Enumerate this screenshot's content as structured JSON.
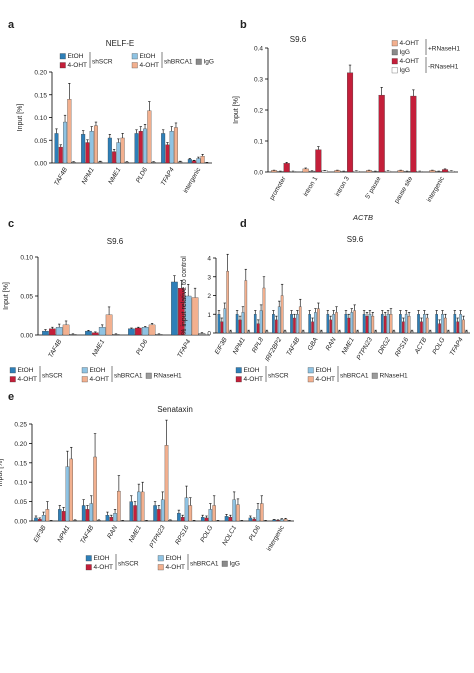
{
  "colors": {
    "etoh_scr": "#2e7fb8",
    "oht_scr": "#c41f3a",
    "etoh_brca": "#8fc3e3",
    "oht_brca": "#f2b08f",
    "igg": "#8a8a8a",
    "rnaseh1": "#9b9b9b",
    "white": "#ffffff"
  },
  "chart_data": [
    {
      "panel": "a",
      "type": "bar",
      "title": "NELF-E",
      "ylabel": "Input [%]",
      "ylim": [
        0,
        0.2
      ],
      "yticks": [
        "0.00",
        "0.05",
        "0.10",
        "0.15",
        "0.20"
      ],
      "categories": [
        "TAF4B",
        "NPM1",
        "NME1",
        "PLD6",
        "TFAP4",
        "intergenic"
      ],
      "legend": {
        "items": [
          "EtOH",
          "4-OHT",
          "EtOH",
          "4-OHT",
          "IgG"
        ],
        "group_labels": [
          "shSCR",
          "shBRCA1"
        ]
      },
      "series": [
        {
          "name": "EtOH shSCR",
          "values": [
            0.065,
            0.063,
            0.055,
            0.065,
            0.065,
            0.008
          ]
        },
        {
          "name": "4-OHT shSCR",
          "values": [
            0.035,
            0.045,
            0.025,
            0.07,
            0.04,
            0.005
          ]
        },
        {
          "name": "EtOH shBRCA1",
          "values": [
            0.09,
            0.07,
            0.045,
            0.075,
            0.07,
            0.01
          ]
        },
        {
          "name": "4-OHT shBRCA1",
          "values": [
            0.14,
            0.082,
            0.055,
            0.115,
            0.078,
            0.015
          ]
        },
        {
          "name": "IgG",
          "values": [
            0.002,
            0.003,
            0.002,
            0.002,
            0.003,
            0.001
          ]
        }
      ],
      "errors": [
        [
          0.01,
          0.008,
          0.008,
          0.008,
          0.008,
          0.002
        ],
        [
          0.005,
          0.006,
          0.005,
          0.01,
          0.005,
          0.001
        ],
        [
          0.015,
          0.01,
          0.008,
          0.01,
          0.01,
          0.003
        ],
        [
          0.035,
          0.008,
          0.01,
          0.02,
          0.01,
          0.004
        ],
        [
          0.001,
          0.001,
          0.001,
          0.001,
          0.001,
          0.0005
        ]
      ]
    },
    {
      "panel": "b",
      "type": "bar",
      "title": "S9.6",
      "ylabel": "Input [%]",
      "xlabel": "ACTB",
      "ylim": [
        0,
        0.4
      ],
      "yticks": [
        "0.0",
        "0.1",
        "0.2",
        "0.3",
        "0.4"
      ],
      "categories": [
        "promoter",
        "intron 1",
        "intron 3",
        "5' pause",
        "pause site",
        "intergenic"
      ],
      "legend": {
        "items": [
          "4-OHT",
          "IgG",
          "4-OHT",
          "IgG"
        ],
        "group_labels": [
          "+RNaseH1",
          "-RNaseH1"
        ]
      },
      "series": [
        {
          "name": "4-OHT +RNaseH1",
          "values": [
            0.005,
            0.01,
            0.005,
            0.005,
            0.005,
            0.005
          ]
        },
        {
          "name": "IgG +RNaseH1",
          "values": [
            0.002,
            0.003,
            0.002,
            0.002,
            0.002,
            0.002
          ]
        },
        {
          "name": "4-OHT -RNaseH1",
          "values": [
            0.028,
            0.072,
            0.32,
            0.248,
            0.245,
            0.008
          ]
        },
        {
          "name": "IgG -RNaseH1",
          "values": [
            0.002,
            0.004,
            0.003,
            0.003,
            0.002,
            0.003
          ]
        }
      ],
      "errors": [
        [
          0.001,
          0.003,
          0.001,
          0.001,
          0.001,
          0.001
        ],
        [
          0.001,
          0.001,
          0.001,
          0.001,
          0.001,
          0.001
        ],
        [
          0.003,
          0.01,
          0.025,
          0.025,
          0.02,
          0.002
        ],
        [
          0.001,
          0.001,
          0.001,
          0.001,
          0.001,
          0.001
        ]
      ]
    },
    {
      "panel": "c",
      "type": "bar",
      "title": "S9.6",
      "ylabel": "Input [%]",
      "ylim": [
        0,
        0.1
      ],
      "yticks": [
        "0.00",
        "0.05",
        "0.10"
      ],
      "categories": [
        "TAF4B",
        "NME1",
        "PLD6",
        "TFAP4"
      ],
      "legend": {
        "items": [
          "EtOH",
          "4-OHT",
          "EtOH",
          "4-OHT",
          "RNaseH1"
        ],
        "group_labels": [
          "shSCR",
          "shBRCA1"
        ]
      },
      "series": [
        {
          "name": "EtOH shSCR",
          "values": [
            0.005,
            0.005,
            0.008,
            0.068
          ]
        },
        {
          "name": "4-OHT shSCR",
          "values": [
            0.008,
            0.003,
            0.009,
            0.06
          ]
        },
        {
          "name": "EtOH shBRCA1",
          "values": [
            0.01,
            0.01,
            0.01,
            0.05
          ]
        },
        {
          "name": "4-OHT shBRCA1",
          "values": [
            0.013,
            0.026,
            0.013,
            0.048
          ]
        },
        {
          "name": "RNaseH1",
          "values": [
            0.001,
            0.001,
            0.001,
            0.002
          ]
        }
      ],
      "errors": [
        [
          0.002,
          0.001,
          0.001,
          0.008
        ],
        [
          0.002,
          0.001,
          0.001,
          0.01
        ],
        [
          0.004,
          0.003,
          0.001,
          0.015
        ],
        [
          0.005,
          0.01,
          0.002,
          0.012
        ],
        [
          0.0005,
          0.0005,
          0.0005,
          0.001
        ]
      ]
    },
    {
      "panel": "d",
      "type": "bar",
      "title": "S9.6",
      "ylabel": "% input relative to control",
      "ylim": [
        0,
        4
      ],
      "yticks": [
        "0",
        "1",
        "2",
        "3",
        "4"
      ],
      "categories": [
        "EIF3B",
        "NPM1",
        "RPL8",
        "IRF2BP2",
        "TAF4B",
        "GBA",
        "RAN",
        "NME1",
        "PTPN23",
        "DRG2",
        "RPS16",
        "ACTB",
        "POLG",
        "TFAP4"
      ],
      "legend": {
        "items": [
          "EtOH",
          "4-OHT",
          "EtOH",
          "4-OHT",
          "RNaseH1"
        ],
        "group_labels": [
          "shSCR",
          "shBRCA1"
        ]
      },
      "series": [
        {
          "name": "EtOH shSCR",
          "values": [
            1.0,
            1.0,
            1.0,
            1.0,
            1.0,
            1.0,
            1.0,
            1.0,
            1.0,
            1.0,
            1.0,
            1.0,
            1.0,
            1.0
          ]
        },
        {
          "name": "4-OHT shSCR",
          "values": [
            0.6,
            0.7,
            0.5,
            0.7,
            0.8,
            0.6,
            0.7,
            0.8,
            0.9,
            0.9,
            0.6,
            0.6,
            0.5,
            0.6
          ]
        },
        {
          "name": "EtOH shBRCA1",
          "values": [
            1.3,
            1.1,
            1.2,
            1.4,
            1.0,
            1.1,
            1.0,
            1.1,
            1.0,
            1.0,
            1.0,
            1.0,
            1.0,
            1.0
          ]
        },
        {
          "name": "4-OHT shBRCA1",
          "values": [
            3.3,
            2.8,
            2.4,
            2.0,
            1.4,
            1.3,
            1.1,
            1.2,
            0.9,
            1.0,
            0.9,
            0.8,
            0.8,
            0.7
          ]
        },
        {
          "name": "RNaseH1",
          "values": [
            0.1,
            0.1,
            0.1,
            0.1,
            0.1,
            0.1,
            0.1,
            0.1,
            0.1,
            0.1,
            0.1,
            0.1,
            0.1,
            0.1
          ]
        }
      ],
      "errors": [
        [
          0.2,
          0.2,
          0.2,
          0.2,
          0.2,
          0.2,
          0.2,
          0.2,
          0.2,
          0.2,
          0.2,
          0.2,
          0.2,
          0.2
        ],
        [
          0.2,
          0.2,
          0.2,
          0.2,
          0.2,
          0.2,
          0.2,
          0.2,
          0.2,
          0.2,
          0.2,
          0.2,
          0.2,
          0.2
        ],
        [
          0.3,
          0.3,
          0.3,
          0.3,
          0.2,
          0.2,
          0.2,
          0.2,
          0.2,
          0.2,
          0.2,
          0.2,
          0.2,
          0.2
        ],
        [
          0.9,
          0.6,
          0.6,
          0.6,
          0.4,
          0.3,
          0.3,
          0.3,
          0.2,
          0.3,
          0.2,
          0.2,
          0.2,
          0.2
        ],
        [
          0.05,
          0.05,
          0.05,
          0.05,
          0.05,
          0.05,
          0.05,
          0.05,
          0.05,
          0.05,
          0.05,
          0.05,
          0.05,
          0.05
        ]
      ]
    },
    {
      "panel": "e",
      "type": "bar",
      "title": "Senataxin",
      "ylabel": "Input [%]",
      "ylim": [
        0,
        0.25
      ],
      "yticks": [
        "0.00",
        "0.05",
        "0.10",
        "0.15",
        "0.20",
        "0.25"
      ],
      "categories": [
        "EIF3B",
        "NPM1",
        "TAF4B",
        "RAN",
        "NME1",
        "PTPN23",
        "RPS16",
        "POLG",
        "NOLC1",
        "PLD6",
        "intergenic"
      ],
      "legend": {
        "items": [
          "EtOH",
          "4-OHT",
          "EtOH",
          "4-OHT",
          "IgG"
        ],
        "group_labels": [
          "shSCR",
          "shBRCA1"
        ]
      },
      "series": [
        {
          "name": "EtOH shSCR",
          "values": [
            0.008,
            0.03,
            0.04,
            0.015,
            0.05,
            0.04,
            0.02,
            0.01,
            0.012,
            0.008,
            0.003
          ]
        },
        {
          "name": "4-OHT shSCR",
          "values": [
            0.005,
            0.025,
            0.03,
            0.01,
            0.04,
            0.03,
            0.01,
            0.008,
            0.01,
            0.005,
            0.002
          ]
        },
        {
          "name": "EtOH shBRCA1",
          "values": [
            0.015,
            0.14,
            0.045,
            0.02,
            0.075,
            0.055,
            0.06,
            0.03,
            0.055,
            0.03,
            0.004
          ]
        },
        {
          "name": "4-OHT shBRCA1",
          "values": [
            0.03,
            0.16,
            0.165,
            0.077,
            0.075,
            0.195,
            0.04,
            0.04,
            0.042,
            0.045,
            0.005
          ]
        },
        {
          "name": "IgG",
          "values": [
            0.001,
            0.002,
            0.002,
            0.001,
            0.001,
            0.002,
            0.001,
            0.001,
            0.001,
            0.001,
            0.001
          ]
        }
      ],
      "errors": [
        [
          0.005,
          0.01,
          0.015,
          0.008,
          0.015,
          0.01,
          0.008,
          0.005,
          0.005,
          0.005,
          0.001
        ],
        [
          0.003,
          0.01,
          0.01,
          0.005,
          0.01,
          0.01,
          0.005,
          0.005,
          0.005,
          0.003,
          0.001
        ],
        [
          0.008,
          0.04,
          0.02,
          0.01,
          0.02,
          0.02,
          0.03,
          0.015,
          0.02,
          0.015,
          0.002
        ],
        [
          0.02,
          0.03,
          0.06,
          0.04,
          0.025,
          0.065,
          0.02,
          0.025,
          0.015,
          0.02,
          0.002
        ],
        [
          0.0005,
          0.001,
          0.001,
          0.0005,
          0.0005,
          0.001,
          0.0005,
          0.0005,
          0.0005,
          0.0005,
          0.0005
        ]
      ]
    }
  ]
}
